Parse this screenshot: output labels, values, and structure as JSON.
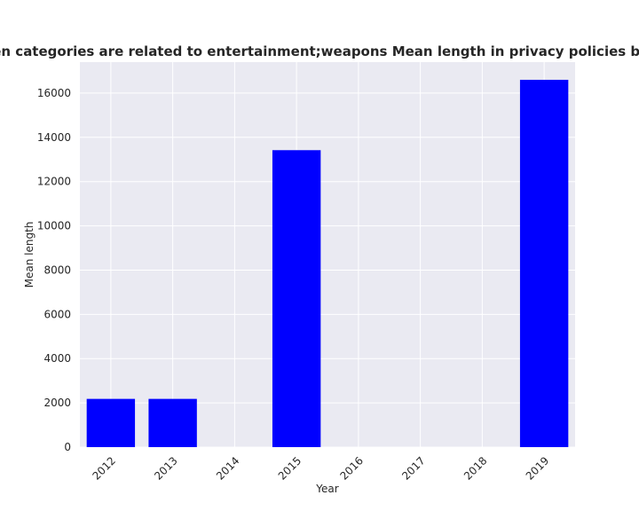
{
  "chart_data": {
    "type": "bar",
    "title": "when categories are related to entertainment;weapons Mean length in privacy policies by Year",
    "xlabel": "Year",
    "ylabel": "Mean length",
    "categories": [
      "2012",
      "2013",
      "2014",
      "2015",
      "2016",
      "2017",
      "2018",
      "2019"
    ],
    "values": [
      2180,
      2180,
      0,
      13420,
      0,
      0,
      0,
      16600
    ],
    "ylim": [
      0,
      17400
    ],
    "yticks": [
      0,
      2000,
      4000,
      6000,
      8000,
      10000,
      12000,
      14000,
      16000
    ],
    "ytick_labels": [
      "0",
      "2000",
      "4000",
      "6000",
      "8000",
      "10000",
      "12000",
      "14000",
      "16000"
    ],
    "bar_color": "#0000ff",
    "background_color": "#eaeaf2",
    "grid_color": "#ffffff",
    "grid": true
  }
}
